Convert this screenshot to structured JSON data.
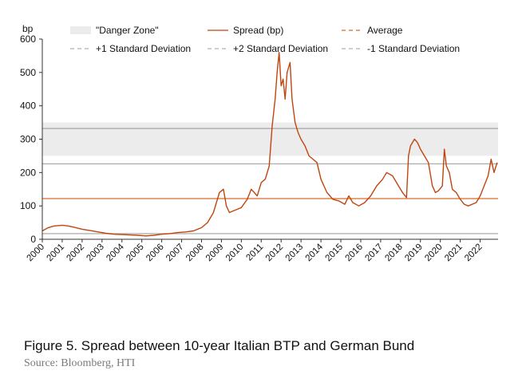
{
  "caption": "Figure 5. Spread between 10-year Italian BTP and German Bund",
  "source": "Source: Bloomberg, HTI",
  "chart_data": {
    "type": "line",
    "title": "",
    "ylabel": "bp",
    "xlabel": "",
    "ylim": [
      0,
      600
    ],
    "yticks": [
      0,
      100,
      200,
      300,
      400,
      500,
      600
    ],
    "xlim": [
      2000,
      2022.9
    ],
    "xticks": [
      "2000",
      "2001",
      "2002",
      "2003",
      "2004",
      "2005",
      "2006",
      "2007",
      "2008",
      "2009",
      "2010",
      "2011",
      "2012",
      "2013",
      "2014",
      "2015",
      "2016",
      "2017",
      "2018",
      "2019",
      "2020",
      "2021",
      "2022"
    ],
    "legend": [
      "\"Danger Zone\"",
      "Spread (bp)",
      "Average",
      "+1 Standard Deviation",
      "+2 Standard Deviation",
      "-1 Standard Deviation"
    ],
    "danger_zone": [
      250,
      350
    ],
    "reference_lines": {
      "average": 122,
      "plus_1_sd": 226,
      "plus_2_sd": 332,
      "minus_1_sd": 17
    },
    "colors": {
      "spread": "#c0450f",
      "average": "#d96a2a",
      "sd": "#b0b0b0",
      "danger_zone": "#ececec",
      "axis": "#333333"
    },
    "series": [
      {
        "name": "Spread (bp)",
        "x": [
          2000.0,
          2000.3,
          2000.6,
          2001.0,
          2001.3,
          2001.6,
          2002.0,
          2002.4,
          2002.8,
          2003.2,
          2003.6,
          2004.0,
          2004.4,
          2004.8,
          2005.2,
          2005.6,
          2006.0,
          2006.4,
          2006.8,
          2007.2,
          2007.6,
          2008.0,
          2008.3,
          2008.6,
          2008.9,
          2009.1,
          2009.25,
          2009.4,
          2009.6,
          2009.8,
          2010.0,
          2010.3,
          2010.5,
          2010.8,
          2011.0,
          2011.2,
          2011.4,
          2011.55,
          2011.7,
          2011.8,
          2011.9,
          2012.0,
          2012.1,
          2012.2,
          2012.3,
          2012.45,
          2012.55,
          2012.7,
          2012.85,
          2013.0,
          2013.2,
          2013.4,
          2013.6,
          2013.8,
          2014.0,
          2014.3,
          2014.6,
          2014.9,
          2015.2,
          2015.4,
          2015.6,
          2015.9,
          2016.2,
          2016.5,
          2016.8,
          2017.1,
          2017.3,
          2017.6,
          2017.9,
          2018.1,
          2018.3,
          2018.4,
          2018.5,
          2018.7,
          2018.85,
          2019.0,
          2019.2,
          2019.4,
          2019.6,
          2019.75,
          2019.9,
          2020.1,
          2020.2,
          2020.3,
          2020.45,
          2020.6,
          2020.8,
          2021.0,
          2021.2,
          2021.4,
          2021.6,
          2021.8,
          2022.0,
          2022.2,
          2022.4,
          2022.55,
          2022.7,
          2022.85
        ],
        "values": [
          25,
          35,
          40,
          42,
          40,
          36,
          30,
          26,
          22,
          18,
          15,
          14,
          13,
          12,
          10,
          12,
          15,
          17,
          20,
          22,
          25,
          35,
          50,
          80,
          140,
          150,
          100,
          80,
          85,
          90,
          95,
          120,
          150,
          130,
          170,
          180,
          220,
          340,
          420,
          500,
          560,
          460,
          480,
          420,
          500,
          530,
          420,
          350,
          320,
          300,
          280,
          250,
          240,
          230,
          180,
          140,
          120,
          115,
          105,
          130,
          110,
          100,
          110,
          130,
          160,
          180,
          200,
          190,
          160,
          140,
          125,
          250,
          280,
          300,
          290,
          270,
          250,
          230,
          160,
          140,
          145,
          160,
          270,
          220,
          200,
          150,
          140,
          120,
          105,
          100,
          105,
          110,
          130,
          160,
          190,
          240,
          200,
          230
        ]
      }
    ]
  }
}
